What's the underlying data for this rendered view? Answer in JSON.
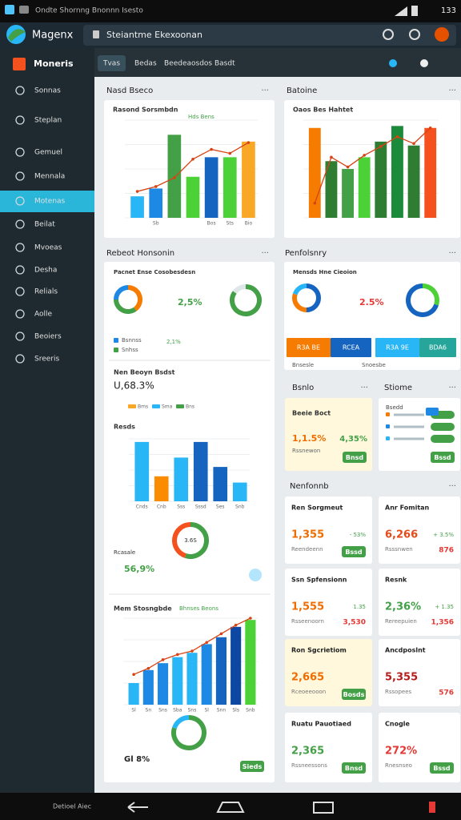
{
  "status_bar": {
    "title": "Ondte Shornng Bnonnn Isesto",
    "time": "133"
  },
  "app_bar": {
    "brand": "Magenx",
    "address": "Steiantme Ekexoonan"
  },
  "sidebar": {
    "title": "Moneris",
    "items": [
      "Sonnas",
      "Steplan",
      "Gemuel",
      "Mennala",
      "Motenas",
      "Beilat",
      "Mvoeas",
      "Desha",
      "Relials",
      "Aolle",
      "Beoiers",
      "Sreeris"
    ],
    "active": 4
  },
  "toolbar": {
    "tabs": [
      "Tvas",
      "Bedas",
      "Beedeaosdos Basdt"
    ]
  },
  "sections": {
    "left_top": "Nasd Bseco",
    "right_top": "Batoine",
    "left_mid": "Rebeot Honsonin",
    "right_mid": "Penfolsnry",
    "bsnlo": "Bsnlo",
    "stiome": "Stiome",
    "nenfonnb": "Nenfonnb"
  },
  "charts": [
    {
      "title": "Rasond Sorsmbdn",
      "legend": "Hds Bens",
      "ylim": [
        0,
        100
      ],
      "values": [
        22,
        30,
        85,
        42,
        62,
        62,
        78
      ],
      "colors": [
        "#29b6f6",
        "#1e88e5",
        "#43a047",
        "#4cd137",
        "#1565c0",
        "#4cd137",
        "#f9a825"
      ],
      "line": [
        27,
        32,
        41,
        60,
        70,
        66,
        77
      ],
      "categories": [
        null,
        "Sb",
        null,
        null,
        "Bos",
        "Sts",
        "Bio"
      ]
    },
    {
      "title": "Oaos Bes Hahtet",
      "ylim": [
        0,
        100
      ],
      "values": [
        92,
        58,
        50,
        62,
        78,
        94,
        74,
        92
      ],
      "colors": [
        "#f57c00",
        "#2e7d32",
        "#43a047",
        "#4cd137",
        "#2e7d32",
        "#1b8a3a",
        "#2e7d32",
        "#f4511e"
      ],
      "line": [
        15,
        62,
        52,
        64,
        73,
        83,
        76,
        92
      ],
      "categories": [
        null,
        null,
        null,
        null,
        null,
        null,
        null,
        null
      ]
    },
    {
      "title": "Resds",
      "ylim": [
        0,
        100
      ],
      "values": [
        95,
        40,
        70,
        95,
        55,
        30
      ],
      "colors": [
        "#29b6f6",
        "#fb8c00",
        "#29b6f6",
        "#1565c0",
        "#1565c0",
        "#29b6f6"
      ],
      "categories": [
        "Cnds",
        "Cnb",
        "Sss",
        "Sssd",
        "Ses",
        "Snb"
      ]
    },
    {
      "title": "Mem Stosngbde",
      "legend": "Bhnses Beons",
      "ylim": [
        0,
        100
      ],
      "values": [
        25,
        40,
        48,
        55,
        60,
        70,
        78,
        90,
        98
      ],
      "colors": [
        "#29b6f6",
        "#1e88e5",
        "#1e88e5",
        "#29b6f6",
        "#29b6f6",
        "#1e88e5",
        "#1565c0",
        "#0d47a1",
        "#4cd137"
      ],
      "line": [
        35,
        42,
        52,
        58,
        62,
        72,
        82,
        92,
        100
      ],
      "categories": [
        "Sl",
        "Sn",
        "Sns",
        "Sba",
        "Sns",
        "Sl",
        "Snn",
        "Sls",
        "Snb"
      ]
    }
  ],
  "donuts": [
    {
      "values": [
        40,
        35,
        25
      ],
      "colors": [
        "#f57c00",
        "#43a047",
        "#1e88e5"
      ]
    },
    {
      "values": [
        85,
        15
      ],
      "colors": [
        "#43a047",
        "#dfe6e9"
      ]
    },
    {
      "values": [
        50,
        30,
        20
      ],
      "colors": [
        "#1565c0",
        "#f57c00",
        "#29b6f6"
      ]
    },
    {
      "values": [
        30,
        70
      ],
      "colors": [
        "#4cd137",
        "#1565c0"
      ]
    },
    {
      "values": [
        55,
        45
      ],
      "colors": [
        "#43a047",
        "#f4511e"
      ],
      "label": "3.6S"
    },
    {
      "values": [
        80,
        20
      ],
      "colors": [
        "#43a047",
        "#29b6f6"
      ]
    }
  ],
  "overview": {
    "title": "Pacnet Ense Cosobesdesn",
    "value": "2,5%",
    "legend": [
      "Bsnnss",
      "Snhss"
    ],
    "legend_value": "2,1%",
    "budget_title": "Nen Beoyn Bsdst",
    "budget_value": "U,68.3%",
    "budget_legend": [
      "Bms",
      "Sma",
      "Bns"
    ],
    "rate_title": "Rcasale",
    "rate_value": "56,9%",
    "total": "Gl 8%",
    "button": "Sieds"
  },
  "portfolio": {
    "title": "Mensds Hne Cieoion",
    "value": "2.5%",
    "buttons": [
      "R3A BE",
      "RCEA",
      "R3A 9E",
      "BDA6"
    ],
    "foot": [
      "Bnsesle",
      "Snoesbe"
    ]
  },
  "bsnlo_card": {
    "title": "Beeie Boct",
    "value": "1,1.5%",
    "side": "4,35%",
    "sub": "Rssnewon",
    "button": "Bnsd"
  },
  "stiome_card": {
    "title": "Bsedd",
    "button": "Bssd"
  },
  "cards": [
    {
      "title": "Ren Sorgmeut",
      "value": "1,355",
      "color": "#ef6c00",
      "sub": "Reendeenn",
      "side": "- 53%",
      "button": "Bssd"
    },
    {
      "title": "Anr Fomitan",
      "value": "6,266",
      "color": "#e64a19",
      "sub": "Rsssnwen",
      "side": "+ 3.5%",
      "side2": "876"
    },
    {
      "title": "Ssn Spfensionn",
      "value": "1,555",
      "color": "#ef6c00",
      "sub": "Rsseenoorn",
      "side": "1.35",
      "side2": "3,530"
    },
    {
      "title": "Resnk",
      "value": "2,36%",
      "color": "#43a047",
      "sub": "Rereepuien",
      "side": "+ 1.35",
      "side2": "1,356"
    },
    {
      "title": "Ron Sgcrietiom",
      "value": "2,665",
      "color": "#ef6c00",
      "sub": "Rceoeeooon",
      "button": "Bosds",
      "highlight": true
    },
    {
      "title": "Ancdposlnt",
      "value": "5,355",
      "color": "#b71c1c",
      "sub": "Rssopees",
      "side2": "576"
    },
    {
      "title": "Ruatu Pauotiaed",
      "value": "2,365",
      "color": "#43a047",
      "sub": "Rssneessons",
      "button": "Bnsd"
    },
    {
      "title": "Cnogle",
      "value": "272%",
      "color": "#e53935",
      "sub": "Rnesnseo",
      "button": "Bssd"
    }
  ],
  "bottom_nav": {
    "label": "Detioel Aiec"
  }
}
